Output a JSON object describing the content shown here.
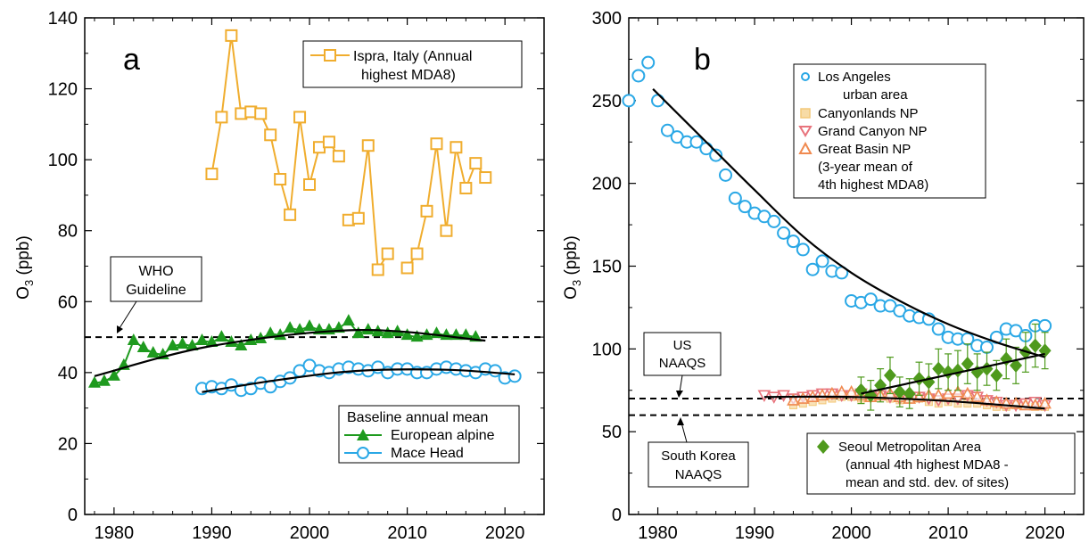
{
  "chart_data": [
    {
      "type": "line",
      "panel_label": "a",
      "ylabel": "O",
      "ylabel_sub": "3",
      "ylabel_unit": " (ppb)",
      "xlim": [
        1977,
        2024
      ],
      "ylim": [
        0,
        140
      ],
      "x_ticks": [
        1980,
        1990,
        2000,
        2010,
        2020
      ],
      "y_ticks": [
        0,
        20,
        40,
        60,
        80,
        100,
        120,
        140
      ],
      "reference_line": {
        "y": 50,
        "label_lines": [
          "WHO",
          "Guideline"
        ]
      },
      "legend_top": {
        "lines": [
          "Ispra, Italy (Annual",
          "highest MDA8)"
        ]
      },
      "legend_bottom": {
        "title": "Baseline annual mean",
        "entries": [
          "European alpine",
          "Mace Head"
        ]
      },
      "colors": {
        "ispra": "#f0ad2e",
        "alpine": "#1e9a1e",
        "mace": "#2aa8e6",
        "fit": "#000000"
      },
      "series": [
        {
          "name": "Ispra, Italy (Annual highest MDA8)",
          "marker": "square",
          "segments": [
            {
              "x": [
                1990,
                1991,
                1992,
                1993,
                1994,
                1995,
                1996,
                1997,
                1998,
                1999,
                2000,
                2001,
                2002,
                2003
              ],
              "y": [
                96,
                112,
                135,
                113,
                113.5,
                113,
                107,
                94.5,
                84.5,
                112,
                93,
                103.5,
                105,
                101
              ]
            },
            {
              "x": [
                2004,
                2005,
                2006,
                2007,
                2008
              ],
              "y": [
                83,
                83.5,
                104,
                69,
                73.5
              ]
            },
            {
              "x": [
                2010,
                2011,
                2012,
                2013,
                2014,
                2015,
                2016,
                2017,
                2018
              ],
              "y": [
                69.5,
                73.5,
                85.5,
                104.5,
                80,
                103.5,
                92,
                99,
                95
              ]
            }
          ]
        },
        {
          "name": "European alpine",
          "marker": "triangle",
          "x": [
            1978,
            1979,
            1980,
            1981,
            1982,
            1983,
            1984,
            1985,
            1986,
            1987,
            1988,
            1989,
            1990,
            1991,
            1992,
            1993,
            1994,
            1995,
            1996,
            1997,
            1998,
            1999,
            2000,
            2001,
            2002,
            2003,
            2004,
            2005,
            2006,
            2007,
            2008,
            2009,
            2010,
            2011,
            2012,
            2013,
            2014,
            2015,
            2016,
            2017
          ],
          "y": [
            37,
            37.5,
            39,
            42,
            49,
            47,
            45.5,
            45,
            47.5,
            48,
            47.5,
            49,
            48.5,
            50,
            48.5,
            47.5,
            49,
            49.5,
            51,
            50.5,
            52.5,
            52,
            53,
            52,
            52,
            52.5,
            54.5,
            51,
            52,
            51.5,
            51,
            51.5,
            50.5,
            50,
            50.5,
            51,
            50.5,
            50.5,
            50.5,
            50
          ],
          "fit": {
            "x": [
              1978,
              1990,
              2005,
              2018
            ],
            "y": [
              39,
              47.5,
              52,
              49
            ]
          }
        },
        {
          "name": "Mace Head",
          "marker": "circle",
          "x": [
            1989,
            1990,
            1991,
            1992,
            1993,
            1994,
            1995,
            1996,
            1997,
            1998,
            1999,
            2000,
            2001,
            2002,
            2003,
            2004,
            2005,
            2006,
            2007,
            2008,
            2009,
            2010,
            2011,
            2012,
            2013,
            2014,
            2015,
            2016,
            2017,
            2018,
            2019,
            2020,
            2021
          ],
          "y": [
            35.5,
            36,
            35.5,
            36.5,
            35,
            35.5,
            37,
            36,
            37.5,
            38.5,
            40.5,
            42,
            40.5,
            40,
            41,
            41.5,
            41,
            40.5,
            41.5,
            40,
            41,
            41,
            40,
            40,
            41,
            41.5,
            41,
            40.5,
            40,
            41,
            40.5,
            38.5,
            39
          ],
          "fit": {
            "x": [
              1989,
              1997,
              2005,
              2014,
              2021
            ],
            "y": [
              34.5,
              38,
              40.5,
              40.8,
              39.5
            ]
          }
        }
      ]
    },
    {
      "type": "line",
      "panel_label": "b",
      "ylabel": "O",
      "ylabel_sub": "3",
      "ylabel_unit": " (ppb)",
      "xlim": [
        1977,
        2024
      ],
      "ylim": [
        0,
        300
      ],
      "x_ticks": [
        1980,
        1990,
        2000,
        2010,
        2020
      ],
      "y_ticks": [
        0,
        50,
        100,
        150,
        200,
        250,
        300
      ],
      "reference_lines": [
        {
          "y": 70,
          "label_lines": [
            "US",
            "NAAQS"
          ]
        },
        {
          "y": 60,
          "label_lines": [
            "South Korea",
            "NAAQS"
          ]
        }
      ],
      "legend_top": {
        "entries": [
          {
            "lines": [
              "Los Angeles",
              "urban area"
            ]
          },
          {
            "lines": [
              "Canyonlands NP"
            ]
          },
          {
            "lines": [
              "Grand Canyon NP"
            ]
          },
          {
            "lines": [
              "Great Basin NP",
              "(3-year mean of",
              "4th highest MDA8)"
            ]
          }
        ]
      },
      "legend_bottom": {
        "lines": [
          "Seoul Metropolitan Area",
          "(annual 4th highest MDA8 -",
          "mean and std. dev. of sites)"
        ]
      },
      "colors": {
        "la": "#2aa8e6",
        "canyonlands": "#f3c97a",
        "grand_canyon": "#e8737c",
        "great_basin": "#f08a50",
        "seoul": "#4f9a1d",
        "fit": "#000000"
      },
      "series": [
        {
          "name": "Los Angeles urban area",
          "marker": "circle",
          "x": [
            1977,
            1978,
            1979,
            1980,
            1981,
            1982,
            1983,
            1984,
            1985,
            1986,
            1987,
            1988,
            1989,
            1990,
            1991,
            1992,
            1993,
            1994,
            1995,
            1996,
            1997,
            1998,
            1999,
            2000,
            2001,
            2002,
            2003,
            2004,
            2005,
            2006,
            2007,
            2008,
            2009,
            2010,
            2011,
            2012,
            2013,
            2014,
            2015,
            2016,
            2017,
            2018,
            2019,
            2020
          ],
          "y": [
            250,
            265,
            273,
            250,
            232,
            228,
            225,
            225,
            221,
            217,
            205,
            191,
            186,
            182,
            180,
            177,
            170,
            165,
            160,
            148,
            153,
            147,
            146,
            129,
            128,
            130,
            126,
            126,
            123,
            120,
            119,
            118,
            112,
            107,
            106,
            106,
            102,
            101,
            107,
            112,
            111,
            108,
            114,
            114
          ],
          "fit": {
            "x": [
              1979.5,
              1985,
              1990,
              1995,
              2000,
              2005,
              2010,
              2015,
              2020
            ],
            "y": [
              257,
              225,
              196,
              168,
              146,
              129,
              115,
              104,
              95
            ]
          }
        },
        {
          "name": "Canyonlands NP",
          "marker": "square",
          "x": [
            1994,
            1995,
            1996,
            1997,
            1998,
            1999,
            2000,
            2001,
            2002,
            2003,
            2004,
            2005,
            2006,
            2007,
            2008,
            2009,
            2010,
            2011,
            2012,
            2013,
            2014,
            2015,
            2016,
            2017,
            2018,
            2019,
            2020
          ],
          "y": [
            66,
            67,
            68,
            69,
            70,
            71,
            71,
            70,
            71,
            72,
            70,
            69,
            70,
            70,
            68,
            67,
            68,
            67,
            67,
            67,
            66,
            65,
            65,
            66,
            66,
            65,
            65
          ]
        },
        {
          "name": "Grand Canyon NP",
          "marker": "triangle-down",
          "x": [
            1991,
            1992,
            1993,
            1994,
            1995,
            1996,
            1997,
            1998,
            1999,
            2000,
            2001,
            2002,
            2003,
            2004,
            2005,
            2006,
            2007,
            2008,
            2009,
            2010,
            2011,
            2012,
            2013,
            2014,
            2015,
            2016,
            2017,
            2018,
            2019,
            2020
          ],
          "y": [
            72,
            71,
            72,
            70,
            71,
            72,
            73,
            73,
            72,
            72,
            73,
            71,
            72,
            71,
            70,
            71,
            71,
            70,
            69,
            70,
            70,
            72,
            71,
            69,
            68,
            66,
            66,
            67,
            68,
            66
          ]
        },
        {
          "name": "Great Basin NP",
          "marker": "triangle-up",
          "x": [
            1994,
            1995,
            1996,
            1997,
            1998,
            1999,
            2000,
            2001,
            2002,
            2003,
            2004,
            2005,
            2006,
            2007,
            2008,
            2009,
            2010,
            2011,
            2012,
            2013,
            2014,
            2015,
            2016,
            2017,
            2018,
            2019,
            2020
          ],
          "y": [
            69,
            70,
            71,
            72,
            73,
            74,
            74,
            72,
            71,
            72,
            73,
            71,
            70,
            71,
            72,
            72,
            73,
            74,
            73,
            71,
            69,
            68,
            67,
            67,
            66,
            66,
            67
          ],
          "fit": {
            "x": [
              1991,
              2000,
              2010,
              2020
            ],
            "y": [
              71,
              71,
              68.5,
              64
            ]
          }
        },
        {
          "name": "Seoul Metropolitan Area",
          "marker": "diamond",
          "x": [
            2001,
            2002,
            2003,
            2004,
            2005,
            2006,
            2007,
            2008,
            2009,
            2010,
            2011,
            2012,
            2013,
            2014,
            2015,
            2016,
            2017,
            2018,
            2019,
            2020
          ],
          "y": [
            75,
            72,
            78,
            84,
            74,
            73,
            82,
            80,
            88,
            86,
            87,
            91,
            86,
            88,
            84,
            94,
            90,
            98,
            102,
            99
          ],
          "err": [
            8,
            9,
            10,
            11,
            9,
            9,
            10,
            11,
            12,
            11,
            12,
            12,
            11,
            10,
            9,
            12,
            11,
            12,
            13,
            11
          ],
          "fit": {
            "x": [
              2001,
              2020
            ],
            "y": [
              73,
              97
            ]
          }
        }
      ]
    }
  ]
}
